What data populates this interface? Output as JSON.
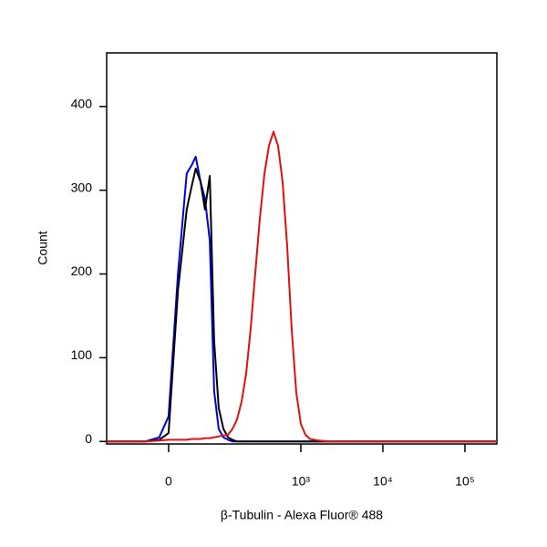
{
  "chart_data": {
    "type": "line",
    "x_label": "β-Tubulin - Alexa Fluor® 488",
    "y_label": "Count",
    "xscale": "biexponential",
    "x": [
      -135,
      -34,
      -13,
      0,
      13,
      26,
      34,
      41,
      50,
      59,
      70,
      81,
      94,
      109,
      125,
      143,
      163,
      187,
      213,
      243,
      276,
      315,
      359,
      408,
      464,
      527,
      599,
      681,
      773,
      879,
      1000,
      1137,
      1292,
      1668,
      2154,
      5990,
      245000
    ],
    "series": [
      {
        "color": "#0000dd",
        "values": [
          0,
          0,
          5,
          30,
          200,
          320,
          330,
          340,
          310,
          290,
          240,
          60,
          15,
          5,
          2,
          0,
          0,
          0,
          0,
          0,
          0,
          0,
          0,
          0,
          0,
          0,
          0,
          0,
          0,
          0,
          0,
          0,
          0,
          0,
          0,
          0,
          0
        ]
      },
      {
        "color": "#000000",
        "values": [
          0,
          0,
          2,
          10,
          180,
          277,
          305,
          326,
          310,
          277,
          317,
          120,
          40,
          15,
          5,
          2,
          0,
          0,
          0,
          0,
          0,
          0,
          0,
          0,
          0,
          0,
          0,
          0,
          0,
          0,
          0,
          0,
          0,
          0,
          0,
          0,
          0
        ]
      },
      {
        "color": "#e01010",
        "values": [
          0,
          0,
          1,
          2,
          2,
          2,
          3,
          3,
          3,
          4,
          4,
          5,
          6,
          7,
          8,
          15,
          26,
          48,
          81,
          135,
          200,
          266,
          320,
          353,
          370,
          353,
          310,
          233,
          135,
          59,
          21,
          8,
          3,
          1,
          0,
          0,
          0
        ]
      }
    ],
    "xlim": [
      -135,
      245000
    ],
    "xticks": [
      0,
      {
        "value": 1000,
        "label": "10³"
      },
      {
        "value": 10000,
        "label": "10⁴"
      },
      {
        "value": 100000,
        "label": "10⁵"
      }
    ],
    "ylim": [
      -3,
      464
    ],
    "yticks": [
      0,
      100,
      200,
      300,
      400
    ]
  }
}
